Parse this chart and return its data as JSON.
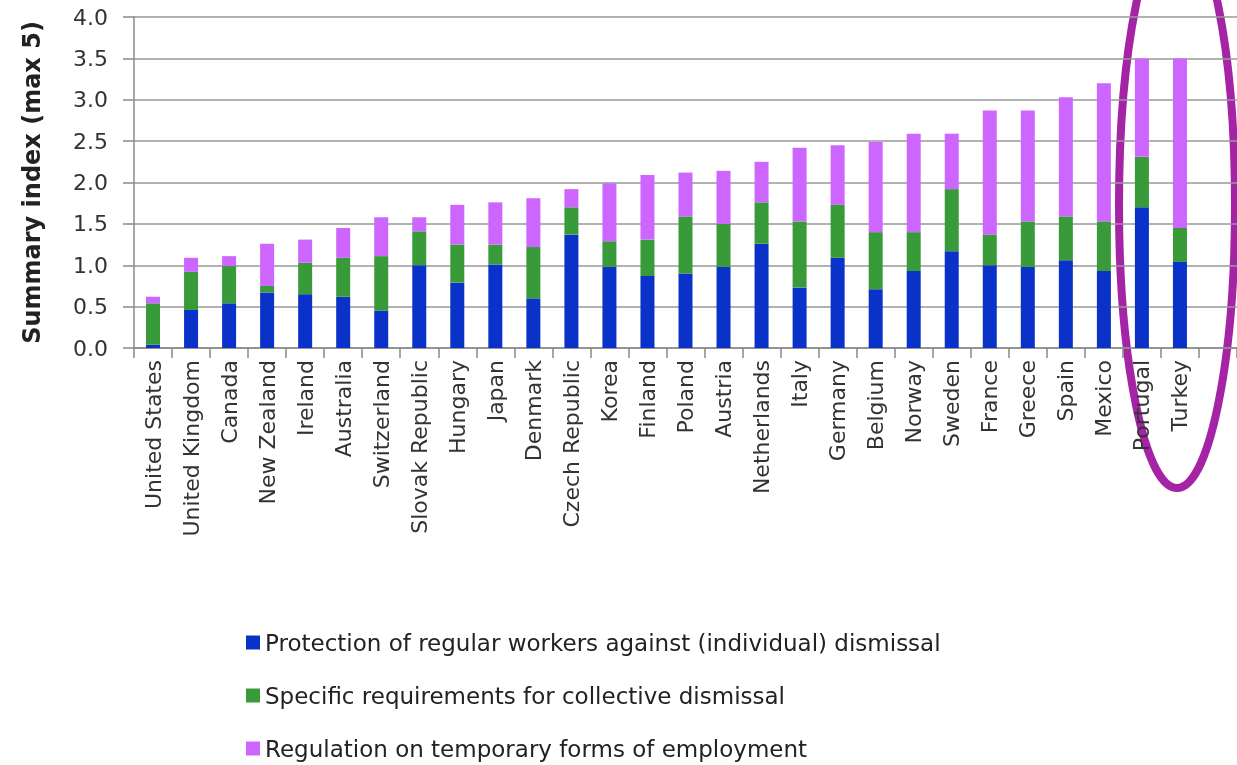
{
  "chart_data": {
    "type": "bar",
    "stacked": true,
    "ylabel": "Summary index (max 5)",
    "categories": [
      "United States",
      "United Kingdom",
      "Canada",
      "New Zealand",
      "Ireland",
      "Australia",
      "Switzerland",
      "Slovak Republic",
      "Hungary",
      "Japan",
      "Denmark",
      "Czech Republic",
      "Korea",
      "Finland",
      "Poland",
      "Austria",
      "Netherlands",
      "Italy",
      "Germany",
      "Belgium",
      "Norway",
      "Sweden",
      "France",
      "Greece",
      "Spain",
      "Mexico",
      "Portugal",
      "Turkey",
      null
    ],
    "series": [
      {
        "name": "Protection of regular workers against (individual) dismissal",
        "color": "#0a32c8",
        "values": [
          0.04,
          0.46,
          0.54,
          0.67,
          0.65,
          0.62,
          0.45,
          1.0,
          0.79,
          1.01,
          0.6,
          1.37,
          0.98,
          0.87,
          0.9,
          0.98,
          1.26,
          0.73,
          1.09,
          0.71,
          0.93,
          1.17,
          1.0,
          0.98,
          1.06,
          0.93,
          1.7,
          1.04,
          null
        ]
      },
      {
        "name": "Specific requirements for collective dismissal",
        "color": "#389a38",
        "values": [
          0.5,
          0.46,
          0.45,
          0.08,
          0.38,
          0.47,
          0.66,
          0.41,
          0.46,
          0.24,
          0.62,
          0.33,
          0.31,
          0.44,
          0.69,
          0.52,
          0.5,
          0.8,
          0.64,
          0.69,
          0.47,
          0.75,
          0.37,
          0.55,
          0.53,
          0.6,
          0.61,
          0.41,
          null
        ]
      },
      {
        "name": "Regulation on temporary forms of employment",
        "color": "#cc66ff",
        "values": [
          0.08,
          0.17,
          0.12,
          0.51,
          0.28,
          0.36,
          0.47,
          0.17,
          0.48,
          0.51,
          0.59,
          0.22,
          0.7,
          0.78,
          0.53,
          0.64,
          0.49,
          0.89,
          0.72,
          1.09,
          1.19,
          0.67,
          1.5,
          1.34,
          1.44,
          1.67,
          1.19,
          2.05,
          null
        ]
      }
    ],
    "ylim": [
      0,
      4
    ],
    "yticks": [
      {
        "value": 0,
        "label": "0.0"
      },
      0.5,
      {
        "value": 1,
        "label": "1.0"
      },
      1.5,
      {
        "value": 2,
        "label": "2.0"
      },
      2.5,
      {
        "value": 3,
        "label": "3.0"
      },
      3.5,
      {
        "value": 4,
        "label": "4.0"
      }
    ],
    "grid": "y",
    "legend": "bottom"
  }
}
